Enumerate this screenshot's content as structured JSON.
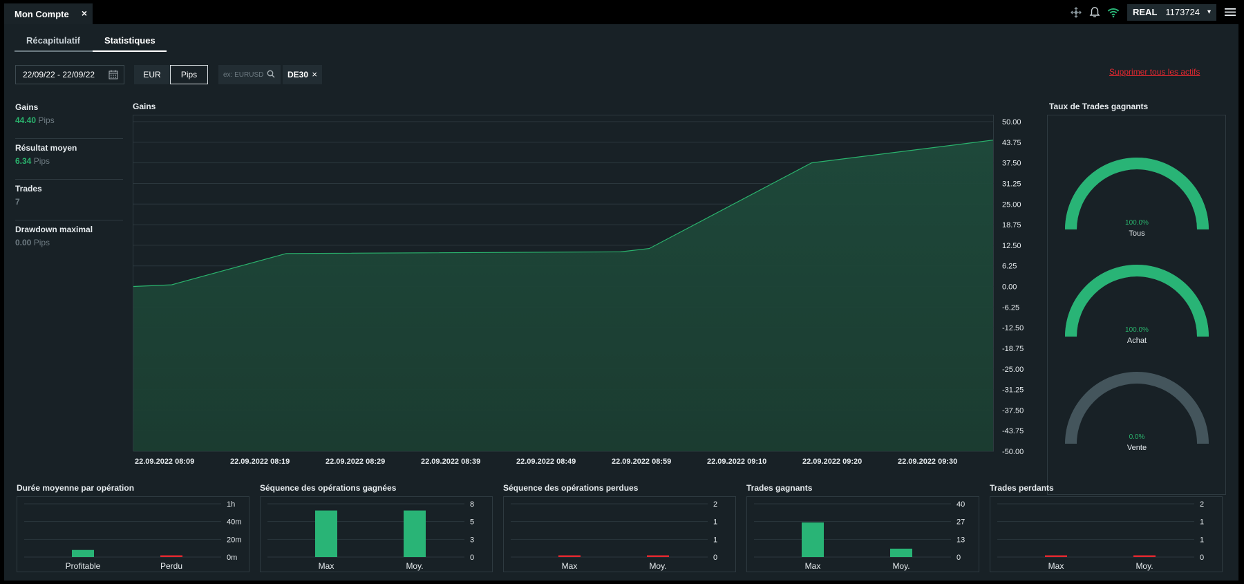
{
  "window": {
    "tab_title": "Mon Compte",
    "close": "×"
  },
  "top": {
    "icons": [
      "cursor-move-icon",
      "bell-icon",
      "wifi-icon"
    ],
    "account_type": "REAL",
    "account_number": "1173724",
    "dropdown": "▾"
  },
  "subtabs": [
    {
      "label": "Récapitulatif"
    },
    {
      "label": "Statistiques",
      "active": true
    }
  ],
  "filters": {
    "date_range": "22/09/22 - 22/09/22",
    "unit_options": [
      "EUR",
      "Pips"
    ],
    "unit_selected": "Pips",
    "search_placeholder": "ex: EURUSD",
    "chip": "DE30",
    "chip_close": "×",
    "delete_all": "Supprimer tous les actifs"
  },
  "stats": [
    {
      "label": "Gains",
      "value": "44.40",
      "unit": "Pips",
      "color": "green"
    },
    {
      "label": "Résultat moyen",
      "value": "6.34",
      "unit": "Pips",
      "color": "green"
    },
    {
      "label": "Trades",
      "value": "7",
      "unit": "",
      "color": "gray"
    },
    {
      "label": "Drawdown maximal",
      "value": "0.00",
      "unit": "Pips",
      "color": "gray"
    }
  ],
  "colors": {
    "green": "#29b476",
    "red": "#e0282f",
    "gray_track": "#44555c",
    "panel": "#182126"
  },
  "chart_data": [
    {
      "type": "area",
      "title": "Gains",
      "x_ticks": [
        "22.09.2022 08:09",
        "22.09.2022 08:19",
        "22.09.2022 08:29",
        "22.09.2022 08:39",
        "22.09.2022 08:49",
        "22.09.2022 08:59",
        "22.09.2022 09:10",
        "22.09.2022 09:20",
        "22.09.2022 09:30"
      ],
      "y_ticks": [
        "50.00",
        "43.75",
        "37.50",
        "31.25",
        "25.00",
        "18.75",
        "12.50",
        "6.25",
        "0.00",
        "-6.25",
        "-12.50",
        "-18.75",
        "-25.00",
        "-31.25",
        "-37.50",
        "-43.75",
        "-50.00"
      ],
      "ylim": [
        -50,
        50
      ],
      "series": [
        {
          "x": [
            "22.09.2022 08:09",
            "22.09.2022 08:13",
            "22.09.2022 08:25",
            "22.09.2022 09:00",
            "22.09.2022 09:03",
            "22.09.2022 09:20",
            "22.09.2022 09:39"
          ],
          "values": [
            0.0,
            0.5,
            10.0,
            10.5,
            11.5,
            37.5,
            44.4
          ]
        }
      ],
      "grid": true
    },
    {
      "type": "gauge",
      "title": "Taux de Trades gagnants",
      "items": [
        {
          "label": "Tous",
          "value": 100.0,
          "text": "100.0%"
        },
        {
          "label": "Achat",
          "value": 100.0,
          "text": "100.0%"
        },
        {
          "label": "Vente",
          "value": 0.0,
          "text": "0.0%"
        }
      ]
    },
    {
      "type": "bar",
      "title": "Durée moyenne par opération",
      "categories": [
        "Profitable",
        "Perdu"
      ],
      "values": [
        8,
        0
      ],
      "value_units": "minutes",
      "y_ticks": [
        "1h",
        "40m",
        "20m",
        "0m"
      ],
      "ylim": [
        0,
        60
      ],
      "colors": [
        "green",
        "red"
      ]
    },
    {
      "type": "bar",
      "title": "Séquence des opérations gagnées",
      "categories": [
        "Max",
        "Moy."
      ],
      "values": [
        7,
        7
      ],
      "y_ticks": [
        "8",
        "5",
        "3",
        "0"
      ],
      "ylim": [
        0,
        8
      ],
      "colors": [
        "green",
        "green"
      ]
    },
    {
      "type": "bar",
      "title": "Séquence des opérations perdues",
      "categories": [
        "Max",
        "Moy."
      ],
      "values": [
        0,
        0
      ],
      "y_ticks": [
        "2",
        "1",
        "1",
        "0"
      ],
      "ylim": [
        0,
        2
      ],
      "colors": [
        "red",
        "red"
      ]
    },
    {
      "type": "bar",
      "title": "Trades gagnants",
      "categories": [
        "Max",
        "Moy."
      ],
      "values": [
        26,
        6.3
      ],
      "y_ticks": [
        "40",
        "27",
        "13",
        "0"
      ],
      "ylim": [
        0,
        40
      ],
      "colors": [
        "green",
        "green"
      ]
    },
    {
      "type": "bar",
      "title": "Trades perdants",
      "categories": [
        "Max",
        "Moy."
      ],
      "values": [
        0,
        0
      ],
      "y_ticks": [
        "2",
        "1",
        "1",
        "0"
      ],
      "ylim": [
        0,
        2
      ],
      "colors": [
        "red",
        "red"
      ]
    }
  ]
}
